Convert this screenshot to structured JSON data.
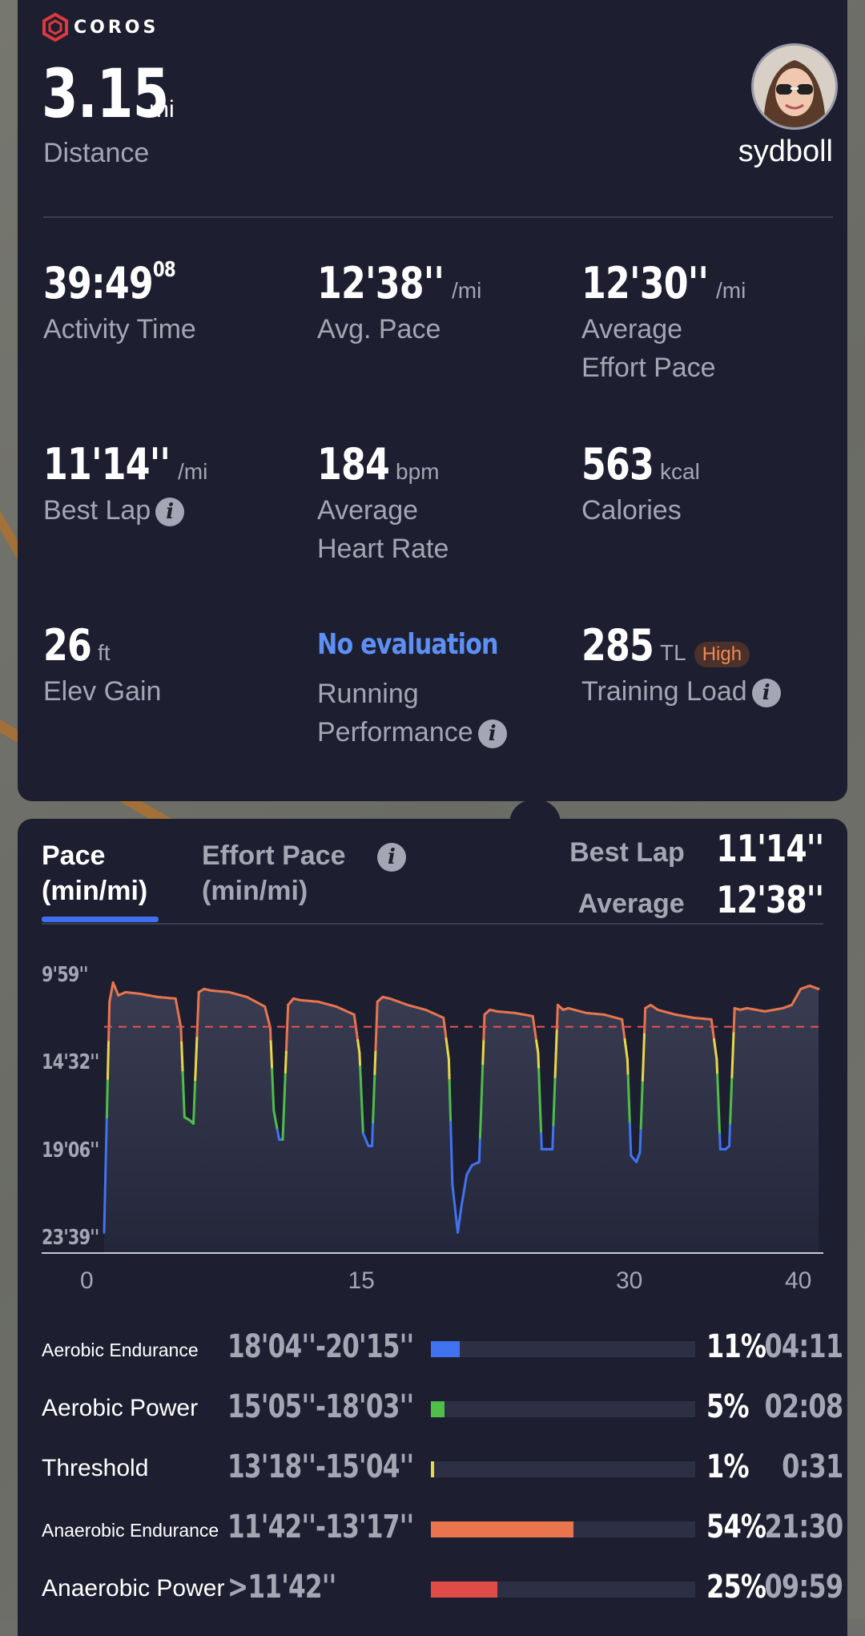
{
  "brand": {
    "name": "COROS",
    "logo_color": "#e0383e"
  },
  "summary": {
    "distance_value": "3.15",
    "distance_unit": "mi",
    "distance_label": "Distance",
    "username": "sydboll",
    "metrics": [
      {
        "id": "activity-time",
        "value": "39:49",
        "sup": "08",
        "unit": "",
        "label": "Activity Time"
      },
      {
        "id": "avg-pace",
        "value": "12'38''",
        "unit": "/mi",
        "label": "Avg. Pace"
      },
      {
        "id": "avg-effort-pace",
        "value": "12'30''",
        "unit": "/mi",
        "label_line1": "Average",
        "label_line2": "Effort Pace"
      },
      {
        "id": "best-lap",
        "value": "11'14''",
        "unit": "/mi",
        "label": "Best Lap"
      },
      {
        "id": "avg-heart-rate",
        "value": "184",
        "unit": "bpm",
        "label_line1": "Average",
        "label_line2": "Heart Rate"
      },
      {
        "id": "calories",
        "value": "563",
        "unit": "kcal",
        "label": "Calories"
      },
      {
        "id": "elev-gain",
        "value": "26",
        "unit": "ft",
        "label": "Elev Gain"
      },
      {
        "id": "running-performance",
        "value": "No evaluation",
        "label_line1": "Running",
        "label_line2": "Performance"
      },
      {
        "id": "training-load",
        "value": "285",
        "unit": "TL",
        "badge": "High",
        "label": "Training Load"
      }
    ]
  },
  "pace_chart": {
    "tabs": [
      {
        "line1": "Pace",
        "line2": "(min/mi)"
      },
      {
        "line1": "Effort Pace",
        "line2": "(min/mi)"
      }
    ],
    "best_lap_label": "Best Lap",
    "best_lap_value": "11'14''",
    "average_label": "Average",
    "average_value": "12'38''",
    "colors": {
      "fast": "#e8754e",
      "threshold": "#e8d84a",
      "aerobic_power": "#4fbe4a",
      "aerobic_endurance": "#4173f0",
      "average_line": "#e8554e"
    }
  },
  "chart_data": {
    "type": "line",
    "title": "",
    "xlabel": "",
    "ylabel": "",
    "x_ticks": [
      "0",
      "15",
      "30",
      "40"
    ],
    "y_ticks": [
      "9'59''",
      "14'32''",
      "19'06''",
      "23'39''"
    ],
    "xlim": [
      0,
      40
    ],
    "ylim_seconds": [
      599,
      1419
    ],
    "y_inverted": true,
    "average_seconds": 758,
    "series": [
      {
        "x": [
          0,
          0.3,
          0.5,
          0.8,
          1.2,
          2,
          3,
          4,
          4.3,
          4.5,
          4.8,
          5,
          5.3,
          5.6,
          6,
          7,
          8,
          9,
          9.3,
          9.5,
          9.8,
          10,
          10.3,
          10.6,
          11,
          12,
          13,
          14,
          14.3,
          14.5,
          14.8,
          15,
          15.3,
          15.6,
          16,
          17,
          18,
          19,
          19.3,
          19.5,
          19.8,
          20,
          20.3,
          20.6,
          21,
          21.3,
          21.6,
          22,
          23,
          24,
          24.3,
          24.5,
          24.8,
          25.1,
          25.4,
          25.7,
          26,
          27,
          28,
          29,
          29.3,
          29.5,
          29.8,
          30,
          30.3,
          30.6,
          31,
          32,
          33,
          34,
          34.3,
          34.5,
          34.8,
          35,
          35.3,
          35.6,
          36,
          37,
          38,
          38.5,
          39,
          39.5,
          40
        ],
        "y": [
          1400,
          680,
          620,
          660,
          650,
          655,
          665,
          670,
          760,
          1040,
          1050,
          1060,
          650,
          640,
          645,
          650,
          665,
          695,
          760,
          1020,
          1110,
          1110,
          690,
          670,
          675,
          680,
          695,
          720,
          840,
          1090,
          1130,
          1130,
          680,
          665,
          670,
          690,
          705,
          730,
          860,
          1250,
          1400,
          1320,
          1220,
          1190,
          1180,
          720,
          705,
          710,
          715,
          725,
          840,
          1140,
          1140,
          1140,
          690,
          705,
          700,
          715,
          720,
          735,
          860,
          1160,
          1180,
          1150,
          700,
          690,
          705,
          720,
          730,
          735,
          860,
          1140,
          1140,
          1130,
          700,
          705,
          700,
          710,
          700,
          690,
          640,
          630,
          640
        ]
      }
    ]
  },
  "zones": [
    {
      "name": "Aerobic Endurance",
      "range": "18'04''-20'15''",
      "percent": "11%",
      "fraction": 0.11,
      "time": "04:11",
      "color": "#4173f0",
      "small": true
    },
    {
      "name": "Aerobic Power",
      "range": "15'05''-18'03''",
      "percent": "5%",
      "fraction": 0.05,
      "time": "02:08",
      "color": "#4fbe4a",
      "small": false
    },
    {
      "name": "Threshold",
      "range": "13'18''-15'04''",
      "percent": "1%",
      "fraction": 0.01,
      "time": "0:31",
      "color": "#e8d84a",
      "small": false
    },
    {
      "name": "Anaerobic Endurance",
      "range": "11'42''-13'17''",
      "percent": "54%",
      "fraction": 0.54,
      "time": "21:30",
      "color": "#e8754e",
      "small": true
    },
    {
      "name": "Anaerobic Power",
      "range": ">11'42''",
      "percent": "25%",
      "fraction": 0.25,
      "time": "09:59",
      "color": "#df4b47",
      "small": false
    }
  ]
}
